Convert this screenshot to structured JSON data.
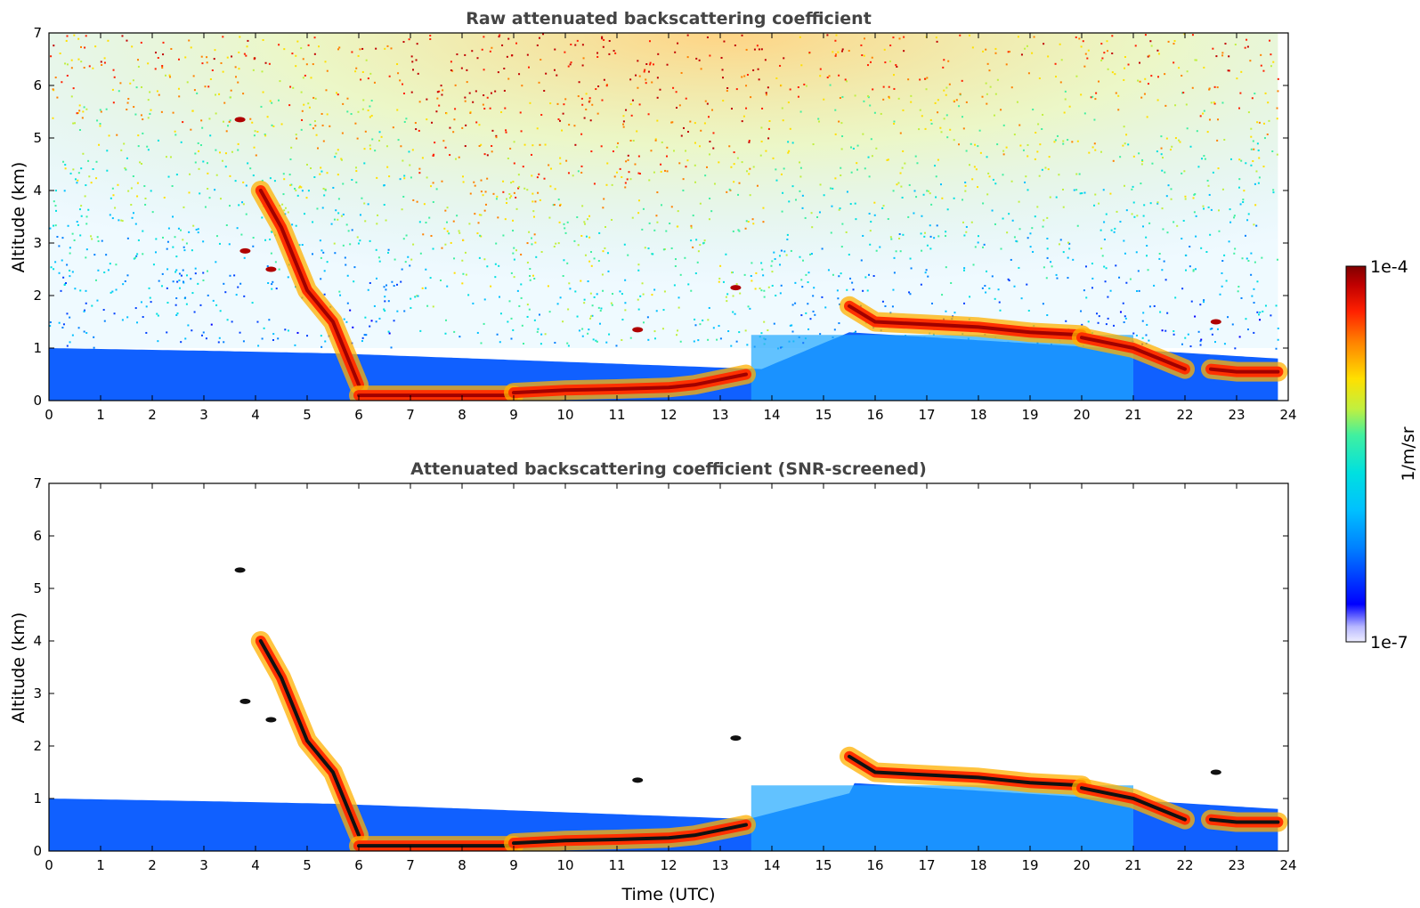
{
  "chart_data": [
    {
      "type": "heatmap",
      "title": "Raw attenuated backscattering coefficient",
      "xlabel": "",
      "ylabel": "Altitude (km)",
      "xlim": [
        0,
        24
      ],
      "ylim": [
        0,
        7
      ],
      "xticks": [
        "0",
        "1",
        "2",
        "3",
        "4",
        "5",
        "6",
        "7",
        "8",
        "9",
        "10",
        "11",
        "12",
        "13",
        "14",
        "15",
        "16",
        "17",
        "18",
        "19",
        "20",
        "21",
        "22",
        "23",
        "24"
      ],
      "yticks": [
        "0",
        "1",
        "2",
        "3",
        "4",
        "5",
        "6",
        "7"
      ],
      "grid": false,
      "data_end_time": 23.8,
      "boundary_layer_top_km": [
        [
          0,
          1.0
        ],
        [
          3,
          0.95
        ],
        [
          5.5,
          0.9
        ],
        [
          13.8,
          0.6
        ],
        [
          15.5,
          1.3
        ],
        [
          23.8,
          0.8
        ]
      ],
      "cloud_layers": [
        {
          "t": [
            4.1,
            4.5,
            5.0,
            5.5,
            6.0
          ],
          "alt_km": [
            4.0,
            3.3,
            2.1,
            1.5,
            0.3
          ]
        },
        {
          "t": [
            6.0,
            7.0,
            8.0,
            9.0
          ],
          "alt_km": [
            0.1,
            0.1,
            0.1,
            0.1
          ]
        },
        {
          "t": [
            9.0,
            10.0,
            11.0,
            12.0,
            12.5,
            13.0,
            13.5
          ],
          "alt_km": [
            0.15,
            0.2,
            0.22,
            0.25,
            0.3,
            0.4,
            0.5
          ]
        },
        {
          "t": [
            15.5,
            16.0,
            17.0,
            18.0,
            19.0,
            20.0
          ],
          "alt_km": [
            1.8,
            1.5,
            1.45,
            1.4,
            1.3,
            1.25
          ]
        },
        {
          "t": [
            20.0,
            21.0,
            22.0
          ],
          "alt_km": [
            1.2,
            1.0,
            0.6
          ]
        },
        {
          "t": [
            22.5,
            23.0,
            23.8
          ],
          "alt_km": [
            0.6,
            0.55,
            0.55
          ]
        }
      ],
      "isolated_cloud_patches": [
        {
          "t": 3.7,
          "alt_km": 5.35
        },
        {
          "t": 3.8,
          "alt_km": 2.85
        },
        {
          "t": 4.3,
          "alt_km": 2.5
        },
        {
          "t": 11.4,
          "alt_km": 1.35
        },
        {
          "t": 13.3,
          "alt_km": 2.15
        },
        {
          "t": 22.6,
          "alt_km": 1.5
        }
      ]
    },
    {
      "type": "heatmap",
      "title": "Attenuated backscattering coefficient (SNR-screened)",
      "xlabel": "Time (UTC)",
      "ylabel": "Altitude (km)",
      "xlim": [
        0,
        24
      ],
      "ylim": [
        0,
        7
      ],
      "xticks": [
        "0",
        "1",
        "2",
        "3",
        "4",
        "5",
        "6",
        "7",
        "8",
        "9",
        "10",
        "11",
        "12",
        "13",
        "14",
        "15",
        "16",
        "17",
        "18",
        "19",
        "20",
        "21",
        "22",
        "23",
        "24"
      ],
      "yticks": [
        "0",
        "1",
        "2",
        "3",
        "4",
        "5",
        "6",
        "7"
      ],
      "grid": false
    }
  ],
  "colorbar": {
    "label": "1/m/sr",
    "max_label": "1e-4",
    "min_label": "1e-7",
    "scale": "log",
    "colormap": "jet",
    "colors": [
      "#eeeeff",
      "#b8b8ff",
      "#0000ff",
      "#0080ff",
      "#00c0ff",
      "#00e0e0",
      "#40f0a0",
      "#c0f040",
      "#ffe000",
      "#ff8000",
      "#ff2000",
      "#c00000",
      "#800000"
    ]
  }
}
